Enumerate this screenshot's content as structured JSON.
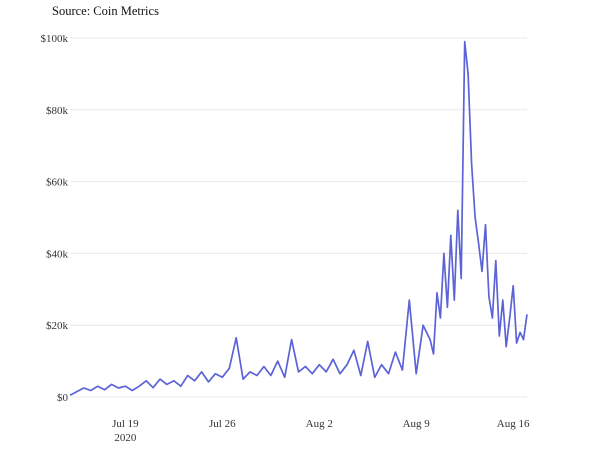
{
  "source": "Source: Coin Metrics",
  "colors": {
    "line": "#5b63d6",
    "grid": "#e9e9e9",
    "text": "#333333"
  },
  "chart_data": {
    "type": "line",
    "title": "",
    "xlabel": "",
    "ylabel": "",
    "ylim": [
      0,
      100000
    ],
    "yticks": [
      {
        "value": 0,
        "label": "$0"
      },
      {
        "value": 20000,
        "label": "$20k"
      },
      {
        "value": 40000,
        "label": "$40k"
      },
      {
        "value": 60000,
        "label": "$60k"
      },
      {
        "value": 80000,
        "label": "$80k"
      },
      {
        "value": 100000,
        "label": "$100k"
      }
    ],
    "xrange": [
      "2020-07-15",
      "2020-08-17"
    ],
    "xticks": [
      {
        "value": "2020-07-19",
        "label": "Jul 19",
        "sublabel": "2020"
      },
      {
        "value": "2020-07-26",
        "label": "Jul 26",
        "sublabel": ""
      },
      {
        "value": "2020-08-02",
        "label": "Aug 2",
        "sublabel": ""
      },
      {
        "value": "2020-08-09",
        "label": "Aug 9",
        "sublabel": ""
      },
      {
        "value": "2020-08-16",
        "label": "Aug 16",
        "sublabel": ""
      }
    ],
    "grid": "horizontal",
    "legend": "none",
    "series": [
      {
        "x": [
          "2020-07-15",
          "2020-07-15T12:00",
          "2020-07-16",
          "2020-07-16T12:00",
          "2020-07-17",
          "2020-07-17T12:00",
          "2020-07-18",
          "2020-07-18T12:00",
          "2020-07-19",
          "2020-07-19T12:00",
          "2020-07-20",
          "2020-07-20T12:00",
          "2020-07-21",
          "2020-07-21T12:00",
          "2020-07-22",
          "2020-07-22T12:00",
          "2020-07-23",
          "2020-07-23T12:00",
          "2020-07-24",
          "2020-07-24T12:00",
          "2020-07-25",
          "2020-07-25T12:00",
          "2020-07-26",
          "2020-07-26T12:00",
          "2020-07-27",
          "2020-07-27T12:00",
          "2020-07-28",
          "2020-07-28T12:00",
          "2020-07-29",
          "2020-07-29T12:00",
          "2020-07-30",
          "2020-07-30T12:00",
          "2020-07-31",
          "2020-07-31T12:00",
          "2020-08-01",
          "2020-08-01T12:00",
          "2020-08-02",
          "2020-08-02T12:00",
          "2020-08-03",
          "2020-08-03T12:00",
          "2020-08-04",
          "2020-08-04T12:00",
          "2020-08-05",
          "2020-08-05T12:00",
          "2020-08-06",
          "2020-08-06T12:00",
          "2020-08-07",
          "2020-08-07T12:00",
          "2020-08-08",
          "2020-08-08T12:00",
          "2020-08-09",
          "2020-08-09T12:00",
          "2020-08-10",
          "2020-08-10T06:00",
          "2020-08-10T12:00",
          "2020-08-10T18:00",
          "2020-08-11",
          "2020-08-11T06:00",
          "2020-08-11T12:00",
          "2020-08-11T18:00",
          "2020-08-12",
          "2020-08-12T06:00",
          "2020-08-12T12:00",
          "2020-08-12T18:00",
          "2020-08-13",
          "2020-08-13T06:00",
          "2020-08-13T12:00",
          "2020-08-13T18:00",
          "2020-08-14",
          "2020-08-14T06:00",
          "2020-08-14T12:00",
          "2020-08-14T18:00",
          "2020-08-15",
          "2020-08-15T06:00",
          "2020-08-15T12:00",
          "2020-08-15T18:00",
          "2020-08-16",
          "2020-08-16T06:00",
          "2020-08-16T12:00",
          "2020-08-16T18:00",
          "2020-08-17"
        ],
        "values": [
          500,
          1500,
          2500,
          1800,
          3000,
          2000,
          3500,
          2500,
          3000,
          1800,
          3000,
          4500,
          2600,
          5000,
          3500,
          4500,
          3000,
          6000,
          4500,
          7000,
          4200,
          6500,
          5500,
          8000,
          16500,
          5000,
          7000,
          6000,
          8500,
          6000,
          10000,
          5500,
          16000,
          7000,
          8500,
          6500,
          9000,
          7000,
          10500,
          6500,
          9000,
          13000,
          6000,
          15500,
          5500,
          9000,
          6500,
          12500,
          7500,
          27000,
          6500,
          20000,
          16000,
          12000,
          29000,
          22000,
          40000,
          25000,
          45000,
          27000,
          52000,
          33000,
          99000,
          90000,
          65000,
          50000,
          43000,
          35000,
          48000,
          28000,
          22000,
          38000,
          17000,
          27000,
          14000,
          22000,
          31000,
          15000,
          18000,
          16000,
          23000
        ]
      }
    ]
  }
}
